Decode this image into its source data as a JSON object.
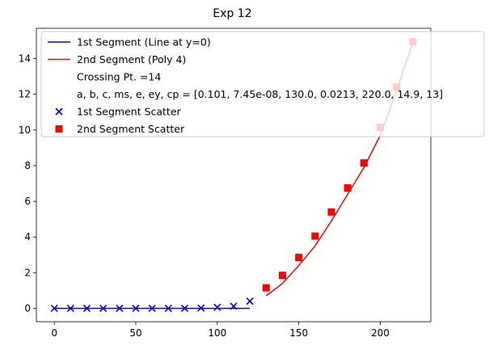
{
  "chart_data": {
    "type": "line",
    "title": "Exp 12",
    "xlabel": "",
    "ylabel": "",
    "xlim": [
      -11,
      231
    ],
    "ylim": [
      -0.75,
      15.7
    ],
    "x_ticks": [
      0,
      50,
      100,
      150,
      200
    ],
    "y_ticks": [
      0,
      2,
      4,
      6,
      8,
      10,
      12,
      14
    ],
    "grid": false,
    "legend_position": "upper-left",
    "legend": [
      {
        "label": "1st Segment (Line at y=0)",
        "marker": "line",
        "color": "#0000ff"
      },
      {
        "label": "2nd Segment (Poly 4)",
        "marker": "line",
        "color": "#ff0000"
      },
      {
        "label": "Crossing Pt. =14",
        "marker": "none",
        "color": ""
      },
      {
        "label": "a, b, c, ms, e, ey, cp = [0.101, 7.45e-08, 130.0, 0.0213, 220.0, 14.9, 13]",
        "marker": "none",
        "color": ""
      },
      {
        "label": "1st Segment Scatter",
        "marker": "x",
        "color": "#0000ff"
      },
      {
        "label": "2nd Segment Scatter",
        "marker": "square",
        "color": "#ff0000"
      }
    ],
    "series": [
      {
        "name": "1st Segment (Line at y=0)",
        "kind": "line",
        "color": "#0000ff",
        "x": [
          0,
          120
        ],
        "y": [
          0,
          0
        ]
      },
      {
        "name": "2nd Segment (Poly 4)",
        "kind": "line",
        "color": "#ff0000",
        "x": [
          130,
          140,
          150,
          160,
          170,
          180,
          190,
          200,
          210,
          220
        ],
        "y": [
          0.7,
          1.4,
          2.4,
          3.5,
          4.9,
          6.4,
          7.9,
          9.7,
          12.2,
          14.9
        ]
      },
      {
        "name": "1st Segment Scatter",
        "kind": "scatter",
        "marker": "x",
        "color": "#0000ff",
        "x": [
          0,
          10,
          20,
          30,
          40,
          50,
          60,
          70,
          80,
          90,
          100,
          110,
          120
        ],
        "y": [
          0,
          0,
          0,
          0,
          0,
          0,
          0,
          0,
          0,
          0.02,
          0.06,
          0.12,
          0.4
        ]
      },
      {
        "name": "2nd Segment Scatter",
        "kind": "scatter",
        "marker": "square",
        "color": "#ff0000",
        "x": [
          130,
          140,
          150,
          160,
          170,
          180,
          190,
          200,
          210,
          220
        ],
        "y": [
          1.15,
          1.85,
          2.85,
          4.05,
          5.4,
          6.75,
          8.15,
          10.15,
          12.4,
          14.95
        ]
      }
    ]
  }
}
